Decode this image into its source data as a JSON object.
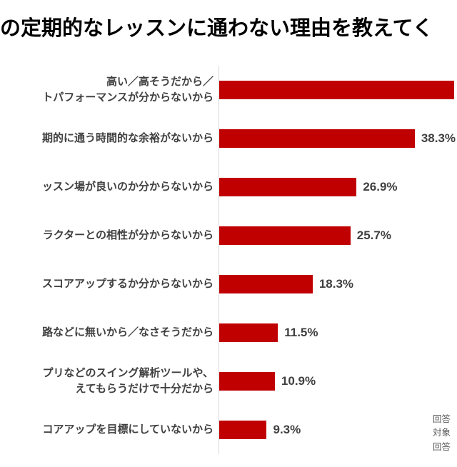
{
  "title": "の定期的なレッスンに通わない理由を教えてく",
  "source_lines": [
    "回答",
    "対象",
    "回答"
  ],
  "chart_data": {
    "type": "bar",
    "orientation": "horizontal",
    "title": "の定期的なレッスンに通わない理由を教えてく",
    "bar_color": "#c00000",
    "unit": "%",
    "xlim": [
      0,
      45.5
    ],
    "grid": false,
    "legend": false,
    "rows": [
      {
        "label_lines": [
          "高い／高そうだから／",
          "トパフォーマンスが分からないから"
        ],
        "value": 46.0,
        "value_label": "",
        "cut_off": true
      },
      {
        "label_lines": [
          "期的に通う時間的な余裕がないから"
        ],
        "value": 38.3,
        "value_label": "38.3%",
        "cut_off": false
      },
      {
        "label_lines": [
          "ッスン場が良いのか分からないから"
        ],
        "value": 26.9,
        "value_label": "26.9%",
        "cut_off": false
      },
      {
        "label_lines": [
          "ラクターとの相性が分からないから"
        ],
        "value": 25.7,
        "value_label": "25.7%",
        "cut_off": false
      },
      {
        "label_lines": [
          "スコアアップするか分からないから"
        ],
        "value": 18.3,
        "value_label": "18.3%",
        "cut_off": false
      },
      {
        "label_lines": [
          "路などに無いから／なさそうだから"
        ],
        "value": 11.5,
        "value_label": "11.5%",
        "cut_off": false
      },
      {
        "label_lines": [
          "プリなどのスイング解析ツールや、",
          "えてもらうだけで十分だから"
        ],
        "value": 10.9,
        "value_label": "10.9%",
        "cut_off": false
      },
      {
        "label_lines": [
          "コアアップを目標にしていないから"
        ],
        "value": 9.3,
        "value_label": "9.3%",
        "cut_off": false
      }
    ]
  }
}
